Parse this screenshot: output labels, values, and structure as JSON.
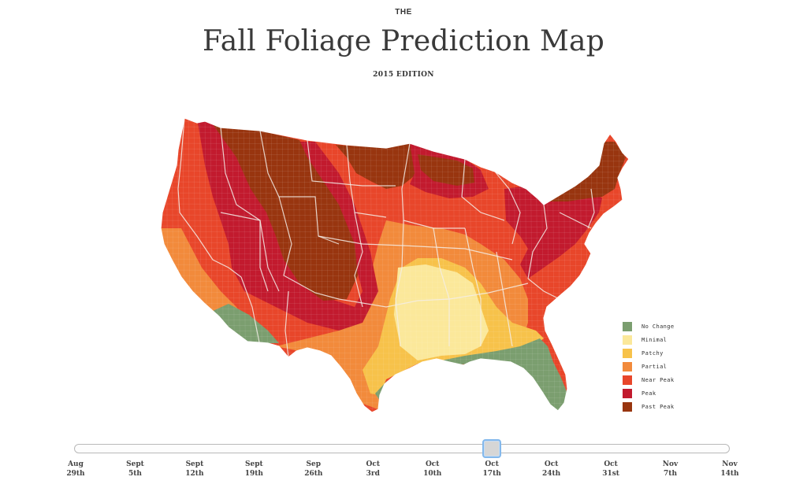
{
  "header": {
    "eyebrow": "THE",
    "title": "Fall Foliage Prediction Map",
    "edition": "2015 EDITION"
  },
  "legend": [
    {
      "label": "No Change",
      "color": "#7b9e6f"
    },
    {
      "label": "Minimal",
      "color": "#fbe89a"
    },
    {
      "label": "Patchy",
      "color": "#f7c24a"
    },
    {
      "label": "Partial",
      "color": "#f28a3b"
    },
    {
      "label": "Near Peak",
      "color": "#e8462a"
    },
    {
      "label": "Peak",
      "color": "#c21a2e"
    },
    {
      "label": "Past Peak",
      "color": "#98350f"
    }
  ],
  "slider": {
    "selected_index": 7,
    "ticks": [
      {
        "month": "Aug",
        "day": "29th"
      },
      {
        "month": "Sept",
        "day": "5th"
      },
      {
        "month": "Sept",
        "day": "12th"
      },
      {
        "month": "Sept",
        "day": "19th"
      },
      {
        "month": "Sep",
        "day": "26th"
      },
      {
        "month": "Oct",
        "day": "3rd"
      },
      {
        "month": "Oct",
        "day": "10th"
      },
      {
        "month": "Oct",
        "day": "17th"
      },
      {
        "month": "Oct",
        "day": "24th"
      },
      {
        "month": "Oct",
        "day": "31st"
      },
      {
        "month": "Nov",
        "day": "7th"
      },
      {
        "month": "Nov",
        "day": "14th"
      }
    ]
  }
}
